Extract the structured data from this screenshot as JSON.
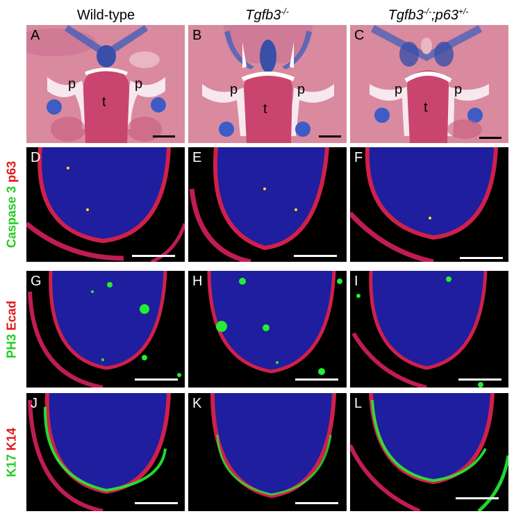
{
  "columns": [
    {
      "text": "Wild-type",
      "sup": ""
    },
    {
      "text": "Tgfb3",
      "sup": "-/-"
    },
    {
      "text": "Tgfb3",
      "sup": "-/-",
      "text2": ";p63",
      "sup2": "+/-"
    }
  ],
  "rows": [
    {
      "green": "Caspase 3",
      "red": "p63"
    },
    {
      "green": "PH3",
      "red": "Ecad"
    },
    {
      "green": "K17",
      "red": "K14"
    }
  ],
  "panels": {
    "A": "A",
    "B": "B",
    "C": "C",
    "D": "D",
    "E": "E",
    "F": "F",
    "G": "G",
    "H": "H",
    "I": "I",
    "J": "J",
    "K": "K",
    "L": "L"
  },
  "histology_labels": {
    "palate": "p",
    "tongue": "t"
  },
  "colors": {
    "histology_bg": "#d98a9f",
    "cartilage_blue": "#4b63b8",
    "nuclei_blue": "#1e1e9e",
    "epithelium_red": "#d0204a",
    "signal_green": "#22ee33"
  }
}
